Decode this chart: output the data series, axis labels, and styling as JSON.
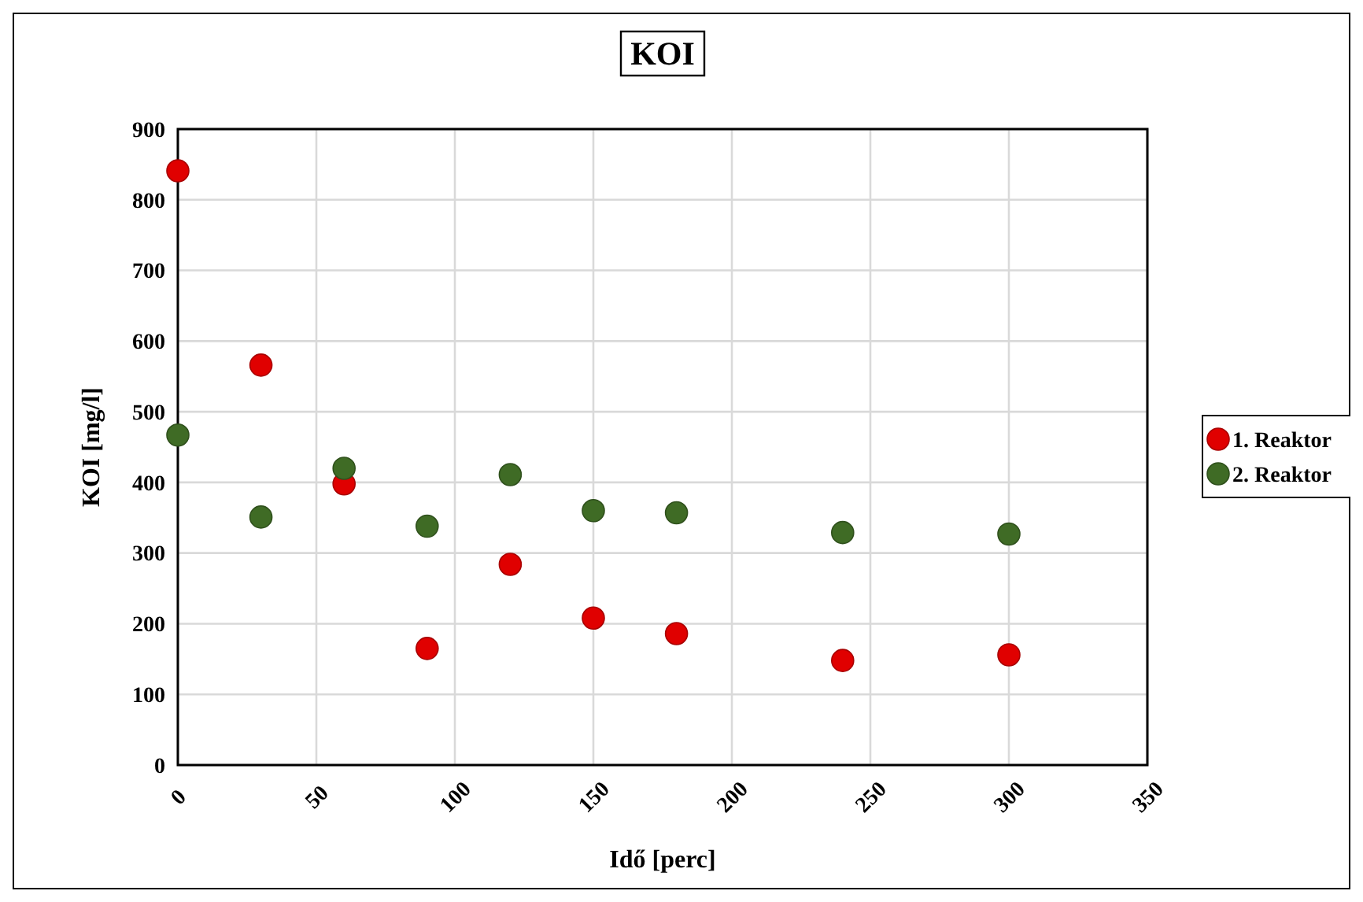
{
  "chart_data": {
    "type": "scatter",
    "title": "KOI",
    "xlabel": "Idő [perc]",
    "ylabel": "KOI [mg/l]",
    "xlim": [
      0,
      350
    ],
    "xticks": [
      0,
      50,
      100,
      150,
      200,
      250,
      300,
      350
    ],
    "ylim": [
      0,
      900
    ],
    "yticks": [
      0,
      100,
      200,
      300,
      400,
      500,
      600,
      700,
      800,
      900
    ],
    "grid": true,
    "legend": "right",
    "marker": "circle",
    "series": [
      {
        "name": "1. Reaktor",
        "color": "#e00000",
        "x": [
          0,
          30,
          60,
          90,
          120,
          150,
          180,
          240,
          300
        ],
        "values": [
          841,
          566,
          398,
          165,
          284,
          208,
          186,
          148,
          156
        ]
      },
      {
        "name": "2. Reaktor",
        "color": "#3f6b25",
        "x": [
          0,
          30,
          60,
          90,
          120,
          150,
          180,
          240,
          300
        ],
        "values": [
          467,
          351,
          420,
          338,
          411,
          360,
          357,
          329,
          327
        ]
      }
    ]
  }
}
